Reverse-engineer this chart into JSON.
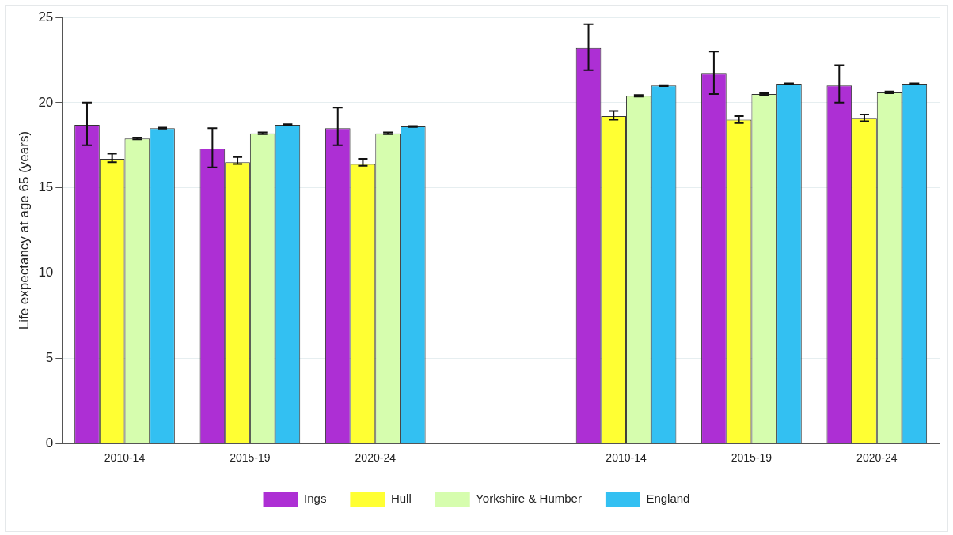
{
  "chart_data": {
    "type": "bar",
    "ylabel": "Life expectancy at age 65 (years)",
    "categories": [
      "2010-14",
      "2015-19",
      "2020-24",
      null,
      "2010-14",
      "2015-19",
      "2020-24"
    ],
    "series": [
      {
        "name": "Ings",
        "color": "#ad2fd4",
        "values": [
          18.7,
          17.3,
          18.5,
          null,
          23.2,
          21.7,
          21.0
        ],
        "errors": [
          [
            17.5,
            20.0
          ],
          [
            16.2,
            18.5
          ],
          [
            17.5,
            19.7
          ],
          null,
          [
            21.9,
            24.6
          ],
          [
            20.5,
            23.0
          ],
          [
            20.0,
            22.2
          ]
        ]
      },
      {
        "name": "Hull",
        "color": "#ffff33",
        "values": [
          16.7,
          16.5,
          16.4,
          null,
          19.2,
          19.0,
          19.1
        ],
        "errors": [
          [
            16.5,
            17.0
          ],
          [
            16.4,
            16.8
          ],
          [
            16.3,
            16.7
          ],
          null,
          [
            19.0,
            19.5
          ],
          [
            18.8,
            19.2
          ],
          [
            18.9,
            19.3
          ]
        ]
      },
      {
        "name": "Yorkshire & Humber",
        "color": "#d6fdae",
        "values": [
          17.9,
          18.2,
          18.2,
          null,
          20.4,
          20.5,
          20.6
        ],
        "errors": [
          0.05,
          0.05,
          0.05,
          null,
          0.05,
          0.05,
          0.05
        ]
      },
      {
        "name": "England",
        "color": "#33c0f2",
        "values": [
          18.5,
          18.7,
          18.6,
          null,
          21.0,
          21.1,
          21.1
        ],
        "errors": [
          0.03,
          0.03,
          0.03,
          null,
          0.03,
          0.03,
          0.03
        ]
      }
    ],
    "ylim": [
      0,
      25
    ],
    "yticks": [
      0,
      5,
      10,
      15,
      20,
      25
    ],
    "grid": "y",
    "legend": "bottom"
  }
}
